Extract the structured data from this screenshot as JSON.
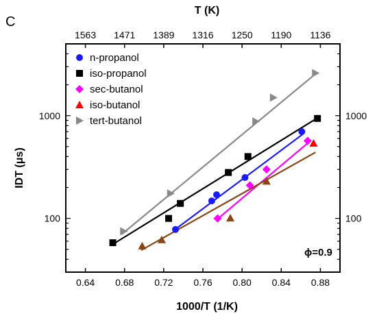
{
  "panel_label": "C",
  "annotation": "ϕ=0.9",
  "chart_data": {
    "type": "scatter",
    "xlabel": "1000/T (1/K)",
    "ylabel": "IDT (μs)",
    "top_xlabel": "T (K)",
    "xlim": [
      0.62,
      0.9
    ],
    "ylim": [
      30,
      5000
    ],
    "y_scale": "log",
    "x_ticks": [
      0.64,
      0.68,
      0.72,
      0.76,
      0.8,
      0.84,
      0.88
    ],
    "x_tick_labels": [
      "0.64",
      "0.68",
      "0.72",
      "0.76",
      "0.80",
      "0.84",
      "0.88"
    ],
    "y_ticks": [
      100,
      1000
    ],
    "y_tick_labels": [
      "100",
      "1000"
    ],
    "right_y_tick_labels": [
      "100",
      "1000"
    ],
    "top_x_ticks": [
      0.64,
      0.68,
      0.72,
      0.76,
      0.8,
      0.84,
      0.88
    ],
    "top_x_tick_labels": [
      "1563",
      "1471",
      "1389",
      "1316",
      "1250",
      "1190",
      "1136"
    ],
    "grid": false,
    "legend_position": "top-left",
    "series": [
      {
        "name": "n-propanol",
        "color": "#1a1aff",
        "marker": "circle",
        "points": [
          [
            0.732,
            78
          ],
          [
            0.769,
            148
          ],
          [
            0.774,
            170
          ],
          [
            0.803,
            250
          ],
          [
            0.861,
            700
          ]
        ],
        "fit": [
          [
            0.73,
            76
          ],
          [
            0.862,
            660
          ]
        ]
      },
      {
        "name": "iso-propanol",
        "color": "#000000",
        "marker": "square",
        "points": [
          [
            0.668,
            58
          ],
          [
            0.725,
            100
          ],
          [
            0.737,
            140
          ],
          [
            0.786,
            280
          ],
          [
            0.806,
            400
          ],
          [
            0.877,
            940
          ]
        ],
        "fit": [
          [
            0.668,
            56
          ],
          [
            0.877,
            950
          ]
        ]
      },
      {
        "name": "sec-butanol",
        "color": "#ff00ff",
        "marker": "diamond",
        "points": [
          [
            0.775,
            100
          ],
          [
            0.808,
            210
          ],
          [
            0.825,
            300
          ],
          [
            0.867,
            570
          ]
        ],
        "fit": [
          [
            0.774,
            97
          ],
          [
            0.869,
            560
          ]
        ]
      },
      {
        "name": "iso-butanol",
        "color": "#ff0000",
        "marker": "triangle-up",
        "points": [
          [
            0.873,
            540
          ]
        ],
        "fit": []
      },
      {
        "name": "",
        "color": "#8B4513",
        "marker": "triangle-up",
        "points": [
          [
            0.698,
            54
          ],
          [
            0.718,
            62
          ],
          [
            0.788,
            101
          ],
          [
            0.825,
            230
          ]
        ],
        "fit": [
          [
            0.697,
            49
          ],
          [
            0.875,
            440
          ]
        ]
      },
      {
        "name": "tert-butanol",
        "color": "#888888",
        "marker": "triangle-right",
        "points": [
          [
            0.679,
            75
          ],
          [
            0.727,
            175
          ],
          [
            0.814,
            880
          ],
          [
            0.832,
            1500
          ],
          [
            0.875,
            2600
          ]
        ],
        "fit": [
          [
            0.677,
            70
          ],
          [
            0.875,
            2550
          ]
        ]
      }
    ]
  }
}
